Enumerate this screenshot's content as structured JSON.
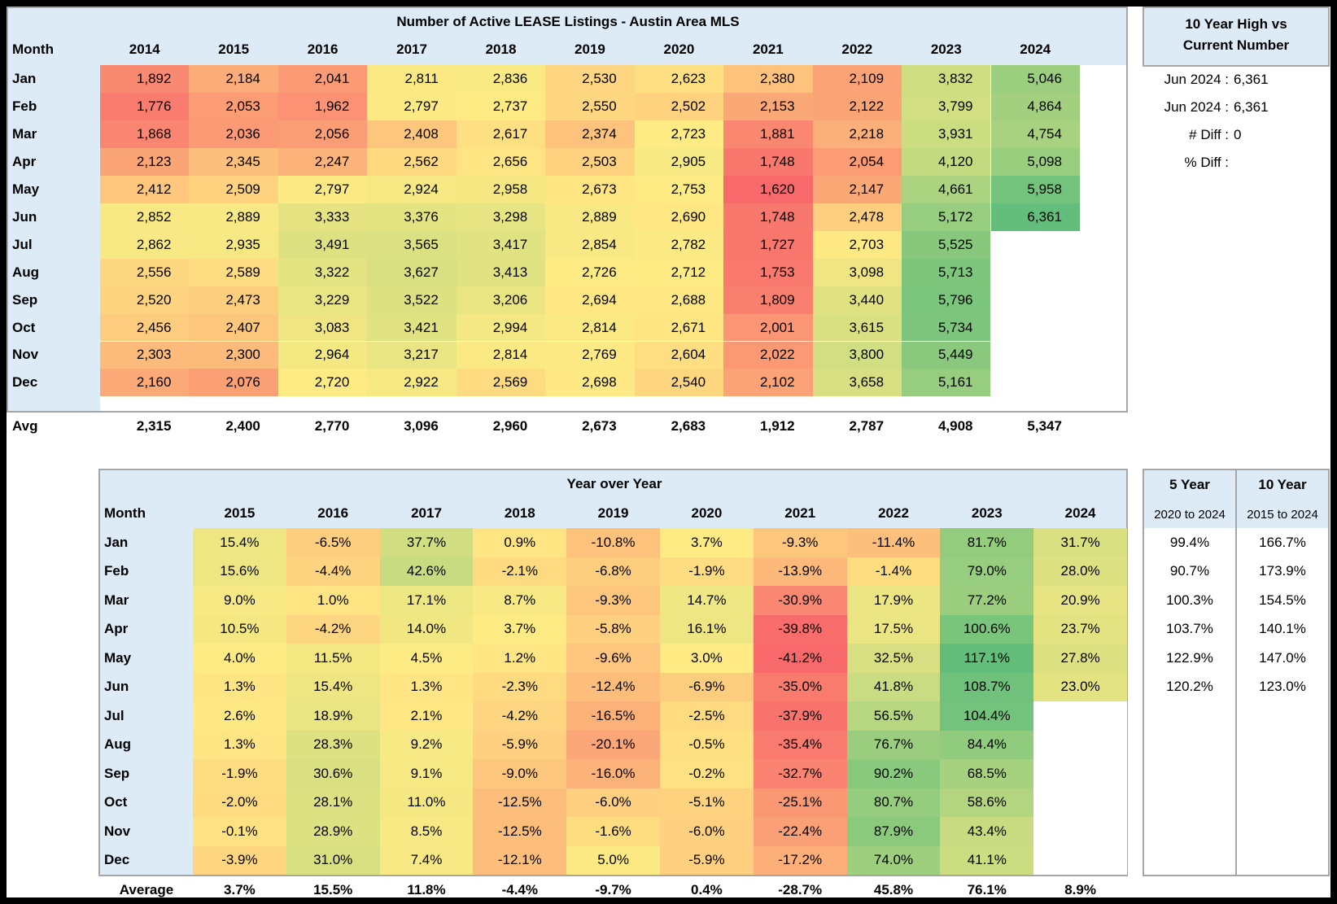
{
  "listings": {
    "title": "Number of Active LEASE Listings - Austin Area MLS",
    "month_header": "Month",
    "years": [
      "2014",
      "2015",
      "2016",
      "2017",
      "2018",
      "2019",
      "2020",
      "2021",
      "2022",
      "2023",
      "2024"
    ],
    "months": [
      "Jan",
      "Feb",
      "Mar",
      "Apr",
      "May",
      "Jun",
      "Jul",
      "Aug",
      "Sep",
      "Oct",
      "Nov",
      "Dec"
    ],
    "rows": [
      [
        "1,892",
        "2,184",
        "2,041",
        "2,811",
        "2,836",
        "2,530",
        "2,623",
        "2,380",
        "2,109",
        "3,832",
        "5,046"
      ],
      [
        "1,776",
        "2,053",
        "1,962",
        "2,797",
        "2,737",
        "2,550",
        "2,502",
        "2,153",
        "2,122",
        "3,799",
        "4,864"
      ],
      [
        "1,868",
        "2,036",
        "2,056",
        "2,408",
        "2,617",
        "2,374",
        "2,723",
        "1,881",
        "2,218",
        "3,931",
        "4,754"
      ],
      [
        "2,123",
        "2,345",
        "2,247",
        "2,562",
        "2,656",
        "2,503",
        "2,905",
        "1,748",
        "2,054",
        "4,120",
        "5,098"
      ],
      [
        "2,412",
        "2,509",
        "2,797",
        "2,924",
        "2,958",
        "2,673",
        "2,753",
        "1,620",
        "2,147",
        "4,661",
        "5,958"
      ],
      [
        "2,852",
        "2,889",
        "3,333",
        "3,376",
        "3,298",
        "2,889",
        "2,690",
        "1,748",
        "2,478",
        "5,172",
        "6,361"
      ],
      [
        "2,862",
        "2,935",
        "3,491",
        "3,565",
        "3,417",
        "2,854",
        "2,782",
        "1,727",
        "2,703",
        "5,525",
        ""
      ],
      [
        "2,556",
        "2,589",
        "3,322",
        "3,627",
        "3,413",
        "2,726",
        "2,712",
        "1,753",
        "3,098",
        "5,713",
        ""
      ],
      [
        "2,520",
        "2,473",
        "3,229",
        "3,522",
        "3,206",
        "2,694",
        "2,688",
        "1,809",
        "3,440",
        "5,796",
        ""
      ],
      [
        "2,456",
        "2,407",
        "3,083",
        "3,421",
        "2,994",
        "2,814",
        "2,671",
        "2,001",
        "3,615",
        "5,734",
        ""
      ],
      [
        "2,303",
        "2,300",
        "2,964",
        "3,217",
        "2,814",
        "2,769",
        "2,604",
        "2,022",
        "3,800",
        "5,449",
        ""
      ],
      [
        "2,160",
        "2,076",
        "2,720",
        "2,922",
        "2,569",
        "2,698",
        "2,540",
        "2,102",
        "3,658",
        "5,161",
        ""
      ]
    ],
    "avg_label": "Avg",
    "avg": [
      "2,315",
      "2,400",
      "2,770",
      "3,096",
      "2,960",
      "2,673",
      "2,683",
      "1,912",
      "2,787",
      "4,908",
      "5,347"
    ]
  },
  "high_vs_current": {
    "title_line1": "10 Year High vs",
    "title_line2": "Current Number",
    "rows": [
      {
        "label": "Jun 2024 :",
        "value": "6,361"
      },
      {
        "label": "Jun 2024 :",
        "value": "6,361"
      },
      {
        "label": "# Diff :",
        "value": "0"
      },
      {
        "label": "% Diff :",
        "value": ""
      }
    ]
  },
  "yoy": {
    "title": "Year over Year",
    "month_header": "Month",
    "years": [
      "2015",
      "2016",
      "2017",
      "2018",
      "2019",
      "2020",
      "2021",
      "2022",
      "2023",
      "2024"
    ],
    "months": [
      "Jan",
      "Feb",
      "Mar",
      "Apr",
      "May",
      "Jun",
      "Jul",
      "Aug",
      "Sep",
      "Oct",
      "Nov",
      "Dec"
    ],
    "rows": [
      [
        "15.4%",
        "-6.5%",
        "37.7%",
        "0.9%",
        "-10.8%",
        "3.7%",
        "-9.3%",
        "-11.4%",
        "81.7%",
        "31.7%"
      ],
      [
        "15.6%",
        "-4.4%",
        "42.6%",
        "-2.1%",
        "-6.8%",
        "-1.9%",
        "-13.9%",
        "-1.4%",
        "79.0%",
        "28.0%"
      ],
      [
        "9.0%",
        "1.0%",
        "17.1%",
        "8.7%",
        "-9.3%",
        "14.7%",
        "-30.9%",
        "17.9%",
        "77.2%",
        "20.9%"
      ],
      [
        "10.5%",
        "-4.2%",
        "14.0%",
        "3.7%",
        "-5.8%",
        "16.1%",
        "-39.8%",
        "17.5%",
        "100.6%",
        "23.7%"
      ],
      [
        "4.0%",
        "11.5%",
        "4.5%",
        "1.2%",
        "-9.6%",
        "3.0%",
        "-41.2%",
        "32.5%",
        "117.1%",
        "27.8%"
      ],
      [
        "1.3%",
        "15.4%",
        "1.3%",
        "-2.3%",
        "-12.4%",
        "-6.9%",
        "-35.0%",
        "41.8%",
        "108.7%",
        "23.0%"
      ],
      [
        "2.6%",
        "18.9%",
        "2.1%",
        "-4.2%",
        "-16.5%",
        "-2.5%",
        "-37.9%",
        "56.5%",
        "104.4%",
        ""
      ],
      [
        "1.3%",
        "28.3%",
        "9.2%",
        "-5.9%",
        "-20.1%",
        "-0.5%",
        "-35.4%",
        "76.7%",
        "84.4%",
        ""
      ],
      [
        "-1.9%",
        "30.6%",
        "9.1%",
        "-9.0%",
        "-16.0%",
        "-0.2%",
        "-32.7%",
        "90.2%",
        "68.5%",
        ""
      ],
      [
        "-2.0%",
        "28.1%",
        "11.0%",
        "-12.5%",
        "-6.0%",
        "-5.1%",
        "-25.1%",
        "80.7%",
        "58.6%",
        ""
      ],
      [
        "-0.1%",
        "28.9%",
        "8.5%",
        "-12.5%",
        "-1.6%",
        "-6.0%",
        "-22.4%",
        "87.9%",
        "43.4%",
        ""
      ],
      [
        "-3.9%",
        "31.0%",
        "7.4%",
        "-12.1%",
        "5.0%",
        "-5.9%",
        "-17.2%",
        "74.0%",
        "41.1%",
        ""
      ]
    ],
    "avg_label": "Average",
    "avg": [
      "3.7%",
      "15.5%",
      "11.8%",
      "-4.4%",
      "-9.7%",
      "0.4%",
      "-28.7%",
      "45.8%",
      "76.1%",
      "8.9%"
    ]
  },
  "growth": {
    "five_year": {
      "title": "5 Year",
      "subtitle": "2020 to 2024",
      "values": [
        "99.4%",
        "90.7%",
        "100.3%",
        "103.7%",
        "122.9%",
        "120.2%"
      ]
    },
    "ten_year": {
      "title": "10 Year",
      "subtitle": "2015 to 2024",
      "values": [
        "166.7%",
        "173.9%",
        "154.5%",
        "140.1%",
        "147.0%",
        "123.0%"
      ]
    }
  },
  "colors": {
    "header_bg": "#ddebf7",
    "scale_low": "#f8696b",
    "scale_mid": "#ffeb84",
    "scale_high": "#63be7b",
    "border": "#a6a6a6"
  }
}
